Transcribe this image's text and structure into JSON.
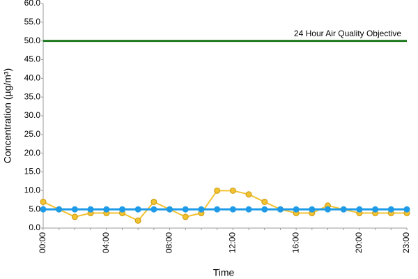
{
  "chart_data": {
    "type": "line",
    "x_label": "Time",
    "y_label": "Concentration (µg/m³)",
    "categories": [
      "00:00",
      null,
      null,
      null,
      "04:00",
      null,
      null,
      null,
      "08:00",
      null,
      null,
      null,
      "12:00",
      null,
      null,
      null,
      "16:00",
      null,
      null,
      null,
      "20:00",
      null,
      null,
      "23:00"
    ],
    "series": [
      {
        "color": "#f2c230",
        "values": [
          7,
          5,
          3,
          4,
          4,
          4,
          2,
          7,
          5,
          3,
          4,
          10,
          10,
          9,
          7,
          5,
          4,
          4,
          6,
          5,
          4,
          4,
          4,
          4
        ]
      },
      {
        "color": "#1e9be8",
        "values": [
          5,
          5,
          5,
          5,
          5,
          5,
          5,
          5,
          5,
          5,
          5,
          5,
          5,
          5,
          5,
          5,
          5,
          5,
          5,
          5,
          5,
          5,
          5,
          5
        ]
      }
    ],
    "reference_line": {
      "value": 50,
      "label": "24 Hour Air Quality Objective",
      "color": "#1f7a1f"
    },
    "ylim": [
      0,
      60
    ],
    "yticks": [
      {
        "value": 0,
        "label": "0.0"
      },
      {
        "value": 5,
        "label": "5.0"
      },
      {
        "value": 10,
        "label": "10.0"
      },
      {
        "value": 15,
        "label": "15.0"
      },
      {
        "value": 20,
        "label": "20.0"
      },
      {
        "value": 25,
        "label": "25.0"
      },
      {
        "value": 30,
        "label": "30.0"
      },
      {
        "value": 35,
        "label": "35.0"
      },
      {
        "value": 40,
        "label": "40.0"
      },
      {
        "value": 45,
        "label": "45.0"
      },
      {
        "value": 50,
        "label": "50.0"
      },
      {
        "value": 55,
        "label": "55.0"
      },
      {
        "value": 60,
        "label": "60.0"
      }
    ],
    "grid": false
  }
}
